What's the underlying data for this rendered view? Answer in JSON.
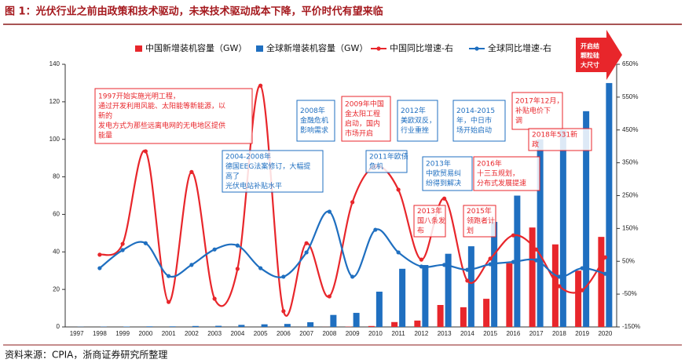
{
  "chart_data": {
    "type": "bar",
    "title": "图 1：光伏行业之前由政策和技术驱动，未来技术驱动成本下降，平价时代有望来临",
    "source": "资料来源：CPIA，浙商证券研究所整理",
    "categories": [
      "1997",
      "1998",
      "1999",
      "2000",
      "2001",
      "2002",
      "2003",
      "2004",
      "2005",
      "2006",
      "2007",
      "2008",
      "2009",
      "2010",
      "2011",
      "2012",
      "2013",
      "2014",
      "2015",
      "2016",
      "2017",
      "2018",
      "2019",
      "2020"
    ],
    "series": [
      {
        "name": "中国新增装机容量（GW）",
        "type": "bar",
        "color": "#e8262b",
        "values": [
          0,
          0,
          0,
          0,
          0,
          0,
          0,
          0,
          0,
          0,
          0.02,
          0.04,
          0.16,
          0.5,
          2.6,
          3.4,
          11.7,
          10.5,
          15,
          34,
          53,
          44,
          30,
          48
        ]
      },
      {
        "name": "全球新增装机容量（GW）",
        "type": "bar",
        "color": "#1f6fc0",
        "values": [
          0.1,
          0.15,
          0.2,
          0.3,
          0.3,
          0.5,
          0.6,
          1.1,
          1.4,
          1.6,
          2.5,
          6.4,
          7.5,
          18.8,
          31,
          33,
          39,
          43,
          56,
          70,
          100,
          105,
          115,
          130
        ]
      },
      {
        "name": "中国同比增速-右",
        "type": "line",
        "axis": "y2",
        "color": "#e8262b",
        "values": [
          null,
          70,
          103,
          385,
          -74,
          322,
          -64,
          27,
          585,
          -102,
          105,
          -57,
          230,
          339,
          268,
          55,
          241,
          -9,
          58,
          129,
          86,
          -26,
          -38,
          62
        ]
      },
      {
        "name": "全球同比增速-右",
        "type": "line",
        "axis": "y2",
        "color": "#1f6fc0",
        "values": [
          null,
          29,
          84,
          105,
          5,
          39,
          86,
          98,
          29,
          3,
          77,
          201,
          3,
          146,
          77,
          34,
          39,
          24,
          41,
          48,
          53,
          3,
          29,
          12
        ]
      }
    ],
    "ylim": [
      0,
      140
    ],
    "yticks": [
      0,
      20,
      40,
      60,
      80,
      100,
      120,
      140
    ],
    "y2lim": [
      -150,
      650
    ],
    "y2ticks": [
      {
        "value": -150,
        "label": "-150%"
      },
      {
        "value": -50,
        "label": "-50%"
      },
      {
        "value": 50,
        "label": "50%"
      },
      {
        "value": 150,
        "label": "150%"
      },
      {
        "value": 250,
        "label": "250%"
      },
      {
        "value": 350,
        "label": "350%"
      },
      {
        "value": 450,
        "label": "450%"
      },
      {
        "value": 550,
        "label": "550%"
      },
      {
        "value": 650,
        "label": "650%"
      }
    ],
    "grid": false,
    "annotations": [
      {
        "color": "#e8262b",
        "lines": [
          "1997开始实施光明工程，",
          "通过开发利用风能、太阳能等新能源，以",
          "新的",
          "发电方式为那些远离电网的无电地区提供",
          "能量"
        ]
      },
      {
        "color": "#1f6fc0",
        "lines": [
          "2004-2008年",
          "德国EEG法案修订，大幅提",
          "高了",
          "光伏电站补贴水平"
        ]
      },
      {
        "color": "#1f6fc0",
        "lines": [
          "2008年",
          "金融危机",
          "影响需求"
        ]
      },
      {
        "color": "#e8262b",
        "lines": [
          "2009年中国",
          "金太阳工程",
          "启动，国内",
          "市场开启"
        ]
      },
      {
        "color": "#1f6fc0",
        "lines": [
          "2011年欧债",
          "危机"
        ]
      },
      {
        "color": "#1f6fc0",
        "lines": [
          "2012年",
          "美欧双反，",
          "行业重挫"
        ]
      },
      {
        "color": "#1f6fc0",
        "lines": [
          "2013年",
          "中欧贸易纠",
          "纷得到解决"
        ]
      },
      {
        "color": "#1f6fc0",
        "lines": [
          "2014-2015",
          "年，中日市",
          "场开始启动"
        ]
      },
      {
        "color": "#e8262b",
        "lines": [
          "2013年",
          "国八条发",
          "布"
        ]
      },
      {
        "color": "#e8262b",
        "lines": [
          "2015年",
          "领跑者计",
          "划"
        ]
      },
      {
        "color": "#e8262b",
        "lines": [
          "2017年12月，",
          "补贴电价下",
          "调"
        ]
      },
      {
        "color": "#e8262b",
        "lines": [
          "2018年531新",
          "政"
        ]
      },
      {
        "color": "#e8262b",
        "lines": [
          "2016年",
          "十三五规划，",
          "分布式发展提速"
        ]
      }
    ],
    "arrow_note": [
      "开启结",
      "颗粒硅",
      "大尺寸"
    ]
  }
}
